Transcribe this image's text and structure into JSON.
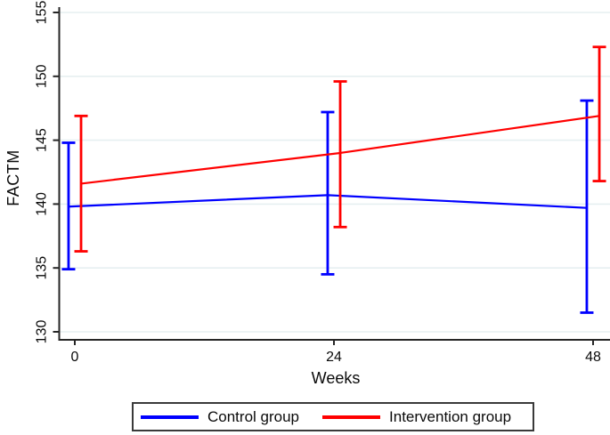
{
  "figure": {
    "background": "#ffffff"
  },
  "chart_data": {
    "type": "line",
    "title": "",
    "xlabel": "Weeks",
    "ylabel": "FACTM",
    "x": [
      0,
      24,
      48
    ],
    "x_tick_labels": [
      "0",
      "24",
      "48"
    ],
    "y_ticks": [
      130,
      135,
      140,
      145,
      150,
      155
    ],
    "y_tick_labels": [
      "130",
      "135",
      "140",
      "145",
      "150",
      "155"
    ],
    "ylim": [
      130,
      155
    ],
    "xlim": [
      0,
      48
    ],
    "grid": "horizontal",
    "error_bars": true,
    "legend_position": "bottom-center",
    "series": [
      {
        "name": "Control group",
        "color": "#0000ff",
        "means": [
          139.8,
          140.7,
          139.7
        ],
        "ci_low": [
          134.9,
          134.5,
          131.5
        ],
        "ci_high": [
          144.8,
          147.2,
          148.1
        ],
        "x_offset_weeks": -0.58
      },
      {
        "name": "Intervention group",
        "color": "#ff0000",
        "means": [
          141.6,
          144.0,
          146.9
        ],
        "ci_low": [
          136.3,
          138.2,
          141.8
        ],
        "ci_high": [
          146.9,
          149.6,
          152.3
        ],
        "x_offset_weeks": 0.58
      }
    ],
    "colors": {
      "grid": "#e6eff1",
      "axis": "#262626",
      "text": "#0a0a0a",
      "legend_border": "#3a3a3a"
    }
  }
}
